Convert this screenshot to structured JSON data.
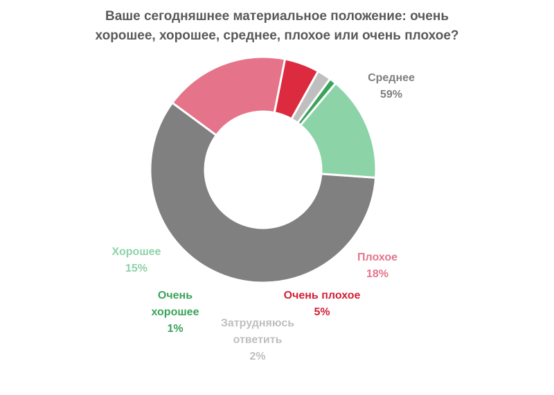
{
  "chart_data": {
    "type": "pie",
    "variant": "donut",
    "title_lines": [
      "Ваше сегодняшнее материальное положение: очень",
      "хорошее, хорошее, среднее, плохое или очень плохое?"
    ],
    "legend": "none",
    "slices": [
      {
        "label_lines": [
          "Среднее"
        ],
        "value": 59,
        "display": "59%",
        "color": "#808080",
        "label_color": "#7f7f7f"
      },
      {
        "label_lines": [
          "Плохое"
        ],
        "value": 18,
        "display": "18%",
        "color": "#e5748b",
        "label_color": "#e5748b"
      },
      {
        "label_lines": [
          "Очень плохое"
        ],
        "value": 5,
        "display": "5%",
        "color": "#dc2a3f",
        "label_color": "#d41f34"
      },
      {
        "label_lines": [
          "Затрудняюсь",
          "ответить"
        ],
        "value": 2,
        "display": "2%",
        "color": "#bfbfbf",
        "label_color": "#bfbfbf"
      },
      {
        "label_lines": [
          "Очень",
          "хорошее"
        ],
        "value": 1,
        "display": "1%",
        "color": "#3aa35a",
        "label_color": "#3aa35a"
      },
      {
        "label_lines": [
          "Хорошее"
        ],
        "value": 15,
        "display": "15%",
        "color": "#8dd3a8",
        "label_color": "#8dd3a8"
      }
    ]
  }
}
